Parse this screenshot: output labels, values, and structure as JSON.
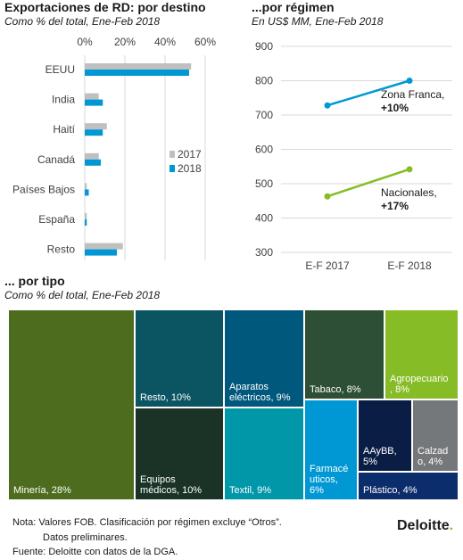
{
  "destino": {
    "title": "Exportaciones de RD: por destino",
    "subtitle": "Como % del total, Ene-Feb 2018"
  },
  "regimen": {
    "title": "...por régimen",
    "subtitle": "En US$ MM, Ene-Feb 2018"
  },
  "tipo": {
    "title": "... por tipo",
    "subtitle": "Como % del total, Ene-Feb 2018"
  },
  "notes": {
    "nota_line1": "Nota: Valores FOB. Clasificación por régimen excluye “Otros”.",
    "nota_line2": "Datos preliminares.",
    "fuente": "Fuente: Deloitte con datos de la DGA.",
    "logo": "Deloitte",
    "logo_dot": "."
  },
  "colors": {
    "bar2017": "#bfbfbf",
    "bar2018": "#0098d4",
    "zona_franca": "#0098d4",
    "nacionales": "#86bc25"
  },
  "chart_data": [
    {
      "type": "bar",
      "orientation": "horizontal",
      "categories": [
        "EEUU",
        "India",
        "Haití",
        "Canadá",
        "Países Bajos",
        "España",
        "Resto"
      ],
      "series": [
        {
          "name": "2017",
          "color": "#bfbfbf",
          "values": [
            53,
            7,
            11,
            7,
            1,
            1,
            19
          ]
        },
        {
          "name": "2018",
          "color": "#0098d4",
          "values": [
            52,
            9,
            9,
            8,
            2,
            1,
            16
          ]
        }
      ],
      "x_ticks": [
        "0%",
        "20%",
        "40%",
        "60%"
      ],
      "xlim": [
        0,
        60
      ],
      "grid": true,
      "legend": "right"
    },
    {
      "type": "line",
      "categories": [
        "E-F 2017",
        "E-F 2018"
      ],
      "series": [
        {
          "name": "Zona Franca,",
          "label_value": "+10%",
          "color": "#0098d4",
          "values": [
            728,
            800
          ]
        },
        {
          "name": "Nacionales,",
          "label_value": "+17%",
          "color": "#86bc25",
          "values": [
            463,
            542
          ]
        }
      ],
      "y_ticks": [
        "900",
        "800",
        "700",
        "600",
        "500",
        "400",
        "300"
      ],
      "ylim": [
        300,
        900
      ],
      "grid": true
    },
    {
      "type": "treemap",
      "tiles": [
        {
          "label": "Minería, 28%",
          "value": 28,
          "color": "#4d6c1e"
        },
        {
          "label": "Resto, 10%",
          "value": 10,
          "color": "#0b5563"
        },
        {
          "label": "Equipos\nmédicos, 10%",
          "value": 10,
          "color": "#1a3326"
        },
        {
          "label": "Aparatos\neléctricos, 9%",
          "value": 9,
          "color": "#00587c"
        },
        {
          "label": "Textil, 9%",
          "value": 9,
          "color": "#0097a9"
        },
        {
          "label": "Tabaco, 8%",
          "value": 8,
          "color": "#2d4f35"
        },
        {
          "label": "Agropecuario\n, 8%",
          "value": 8,
          "color": "#86bc25"
        },
        {
          "label": "Farmacé\nuticos,\n6%",
          "value": 6,
          "color": "#0098d4"
        },
        {
          "label": "AAyBB,\n5%",
          "value": 5,
          "color": "#0a1d45"
        },
        {
          "label": "Calzad\no, 4%",
          "value": 4,
          "color": "#75787b"
        },
        {
          "label": "Plástico, 4%",
          "value": 4,
          "color": "#0c2d6b"
        }
      ]
    }
  ]
}
